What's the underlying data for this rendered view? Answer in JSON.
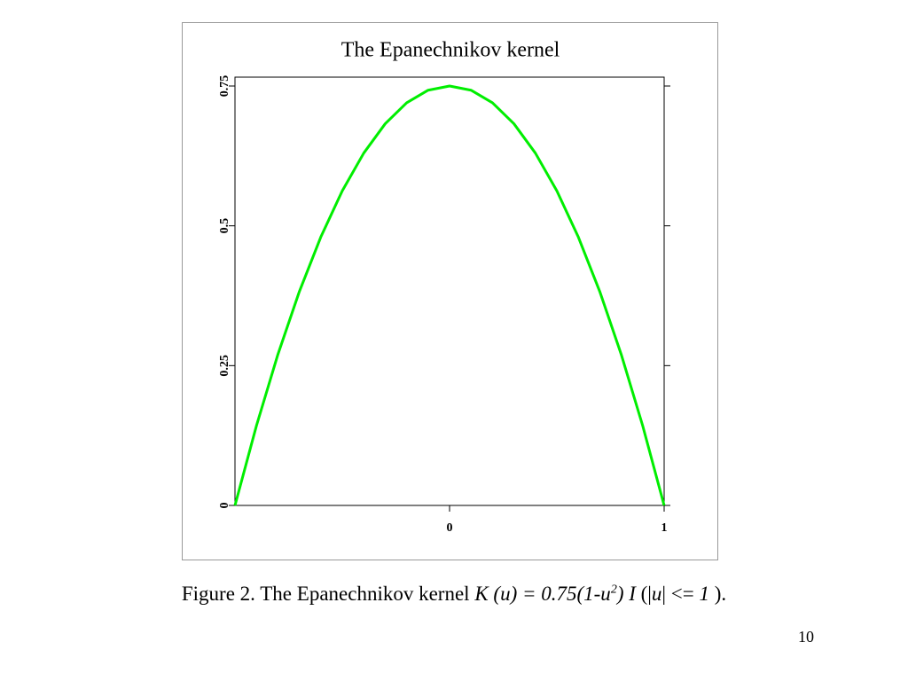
{
  "chart_data": {
    "type": "line",
    "title": "The Epanechnikov kernel",
    "x": [
      -1,
      -0.9,
      -0.8,
      -0.7,
      -0.6,
      -0.5,
      -0.4,
      -0.3,
      -0.2,
      -0.1,
      0,
      0.1,
      0.2,
      0.3,
      0.4,
      0.5,
      0.6,
      0.7,
      0.8,
      0.9,
      1
    ],
    "values": [
      0,
      0.1425,
      0.27,
      0.3825,
      0.48,
      0.5625,
      0.63,
      0.6825,
      0.72,
      0.7425,
      0.75,
      0.7425,
      0.72,
      0.6825,
      0.63,
      0.5625,
      0.48,
      0.3825,
      0.27,
      0.1425,
      0
    ],
    "color": "#00ee00",
    "xlim": [
      -1,
      1
    ],
    "xticks": [
      0,
      1
    ],
    "ylim": [
      0,
      0.75
    ],
    "yticks": [
      0,
      0.25,
      0.5,
      0.75
    ]
  },
  "caption": [
    "Figure 2. The Epanechnikov kernel ",
    "K (u) = 0.75(1-u",
    "2",
    ") I",
    " (|",
    "u",
    "| <= ",
    "1",
    " )."
  ],
  "page_number": "10"
}
